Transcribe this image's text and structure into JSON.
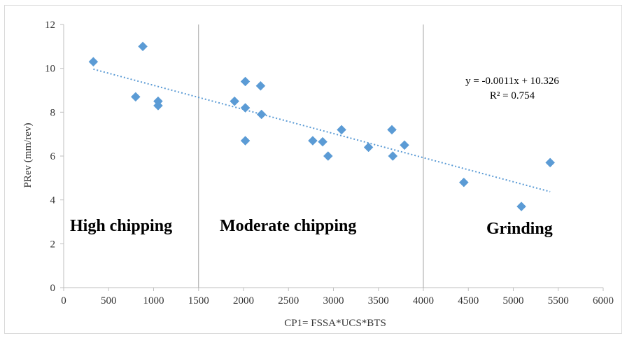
{
  "chart_data": {
    "type": "scatter",
    "title": "",
    "xlabel": "CP1= FSSA*UCS*BTS",
    "ylabel": "PRev (mm/rev)",
    "xlim": [
      0,
      6000
    ],
    "ylim": [
      0,
      12
    ],
    "x_ticks": [
      0,
      500,
      1000,
      1500,
      2000,
      2500,
      3000,
      3500,
      4000,
      4500,
      5000,
      5500,
      6000
    ],
    "x_tick_labels": [
      "0",
      "500",
      "1000",
      "1500",
      "2000",
      "2500",
      "3000",
      "3500",
      "4000",
      "4500",
      "5000",
      "5500",
      "6000"
    ],
    "y_ticks": [
      0,
      2,
      4,
      6,
      8,
      10,
      12
    ],
    "y_tick_labels": [
      "0",
      "2",
      "4",
      "6",
      "8",
      "10",
      "12"
    ],
    "marker_color": "#5b9bd5",
    "trendline_color": "#5b9bd5",
    "divider_color": "#a6a6a6",
    "grid": false,
    "legend": "none",
    "series": [
      {
        "points": [
          [
            330,
            10.3
          ],
          [
            800,
            8.7
          ],
          [
            880,
            11.0
          ],
          [
            1050,
            8.5
          ],
          [
            1050,
            8.3
          ],
          [
            1900,
            8.5
          ],
          [
            2020,
            9.4
          ],
          [
            2020,
            8.2
          ],
          [
            2020,
            6.7
          ],
          [
            2190,
            9.2
          ],
          [
            2200,
            7.9
          ],
          [
            2770,
            6.7
          ],
          [
            2880,
            6.65
          ],
          [
            2940,
            6.0
          ],
          [
            3090,
            7.2
          ],
          [
            3390,
            6.4
          ],
          [
            3650,
            7.2
          ],
          [
            3660,
            6.0
          ],
          [
            3790,
            6.5
          ],
          [
            4450,
            4.8
          ],
          [
            5090,
            3.7
          ],
          [
            5410,
            5.7
          ]
        ]
      }
    ],
    "trendline": {
      "slope": -0.0011,
      "intercept": 10.326,
      "x_range": [
        330,
        5410
      ],
      "equation_label": "y = -0.0011x + 10.326",
      "r2_label": "R² = 0.754"
    },
    "dividers_x": [
      1500,
      4000
    ],
    "regions": [
      {
        "label": "High chipping"
      },
      {
        "label": "Moderate chipping"
      },
      {
        "label": "Grinding"
      }
    ]
  }
}
